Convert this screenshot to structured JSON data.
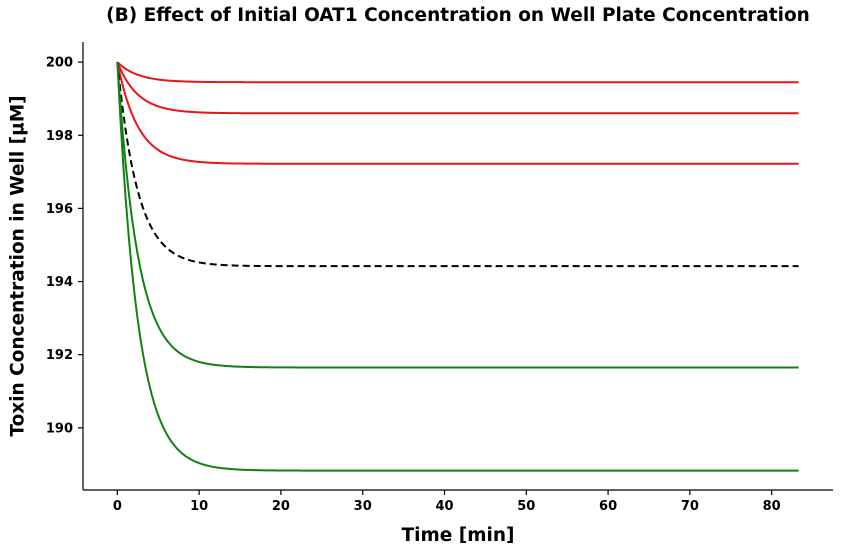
{
  "chart_data": {
    "type": "line",
    "title": "(B) Effect of Initial OAT1 Concentration on Well Plate Concentration",
    "xlabel": "Time [min]",
    "ylabel": "Toxin Concentration in Well [µM]",
    "xlim": [
      -4.2,
      87.5
    ],
    "ylim": [
      188.3,
      200.55
    ],
    "xticks": [
      0,
      10,
      20,
      30,
      40,
      50,
      60,
      70,
      80
    ],
    "yticks": [
      190,
      192,
      194,
      196,
      198,
      200
    ],
    "grid": false,
    "legend": "none",
    "x": {
      "start": 0,
      "end": 83.3
    },
    "series": [
      {
        "color": "#e8141a",
        "style": "solid",
        "start": 200,
        "final": 199.45,
        "tau": 2.5
      },
      {
        "color": "#e8141a",
        "style": "solid",
        "start": 200,
        "final": 198.6,
        "tau": 2.5
      },
      {
        "color": "#e8141a",
        "style": "solid",
        "start": 200,
        "final": 197.22,
        "tau": 2.5
      },
      {
        "color": "#000000",
        "style": "dashed",
        "start": 200,
        "final": 194.42,
        "tau": 2.5
      },
      {
        "color": "#138013",
        "style": "solid",
        "start": 200,
        "final": 191.65,
        "tau": 2.5
      },
      {
        "color": "#138013",
        "style": "solid",
        "start": 200,
        "final": 188.83,
        "tau": 2.5
      }
    ]
  }
}
